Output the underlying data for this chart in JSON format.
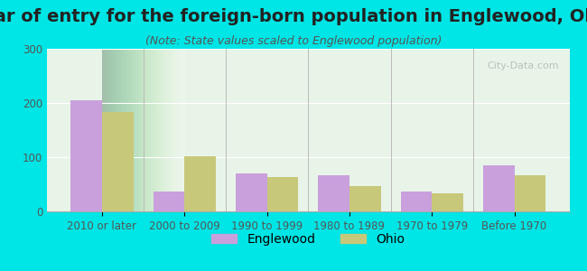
{
  "title": "Year of entry for the foreign-born population in Englewood, Ohio",
  "subtitle": "(Note: State values scaled to Englewood population)",
  "categories": [
    "2010 or later",
    "2000 to 2009",
    "1990 to 1999",
    "1980 to 1989",
    "1970 to 1979",
    "Before 1970"
  ],
  "englewood_values": [
    205,
    37,
    70,
    67,
    37,
    85
  ],
  "ohio_values": [
    183,
    102,
    63,
    47,
    33,
    67
  ],
  "englewood_color": "#c9a0dc",
  "ohio_color": "#c8c87a",
  "bar_width": 0.38,
  "ylim": [
    0,
    300
  ],
  "yticks": [
    0,
    100,
    200,
    300
  ],
  "background_color": "#00e5e5",
  "plot_bg_color_top": "#f0fff0",
  "plot_bg_color_bottom": "#e8f5e8",
  "title_fontsize": 14,
  "subtitle_fontsize": 9,
  "tick_fontsize": 8.5,
  "legend_fontsize": 10,
  "watermark_text": "City-Data.com"
}
